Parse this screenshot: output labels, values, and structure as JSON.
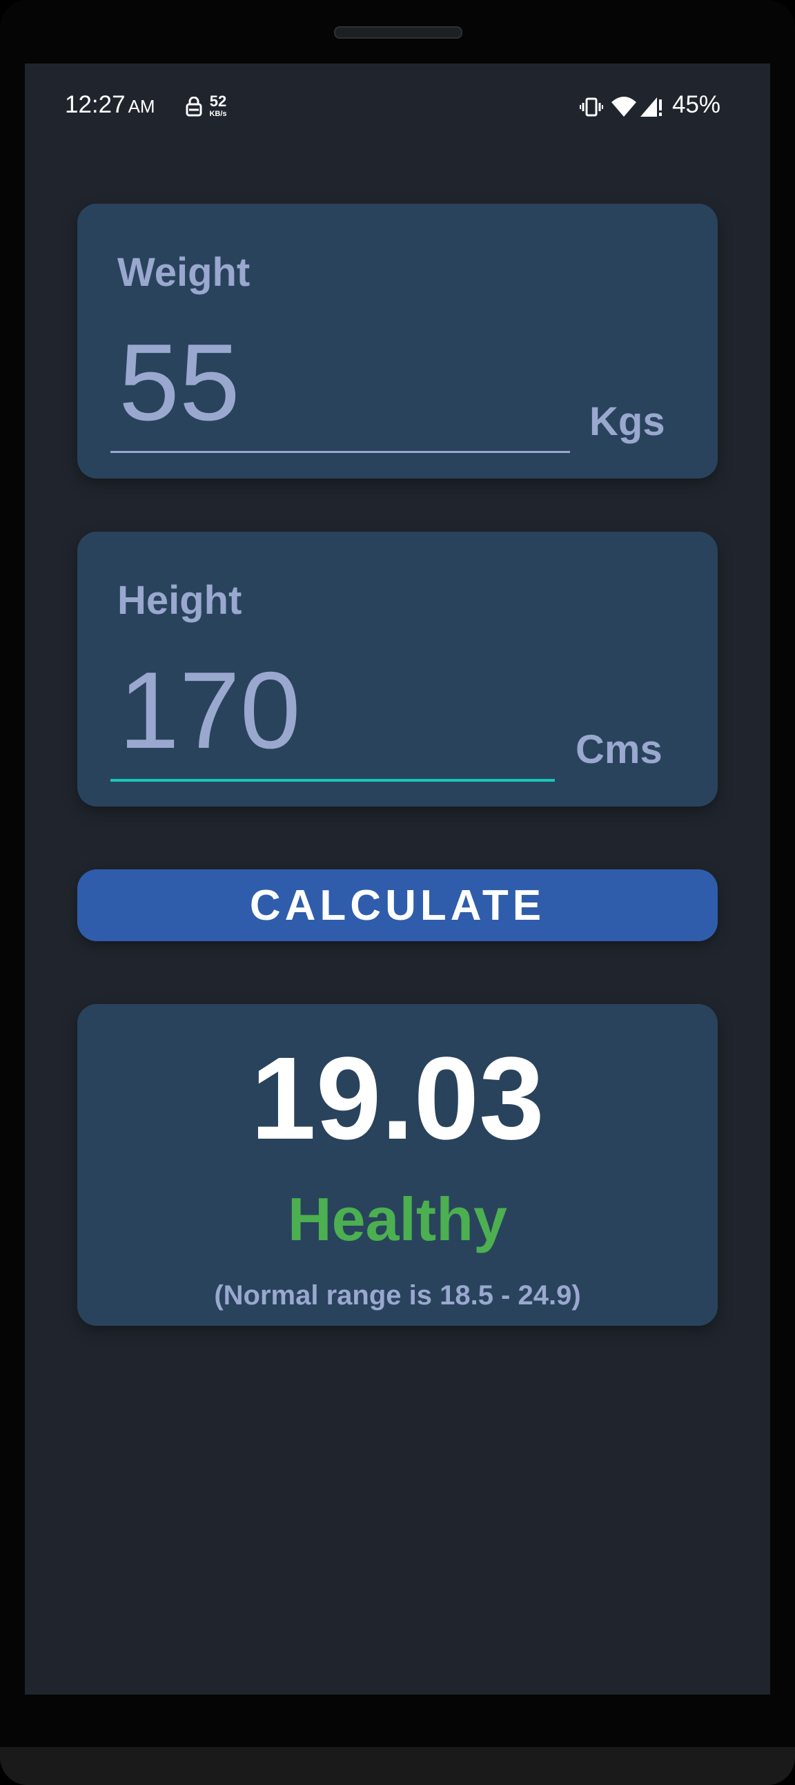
{
  "status_bar": {
    "time": "12:27",
    "ampm": "AM",
    "net_speed_value": "52",
    "net_speed_unit": "KB/s",
    "battery": "45%"
  },
  "weight": {
    "label": "Weight",
    "value": "55",
    "unit": "Kgs"
  },
  "height": {
    "label": "Height",
    "value": "170",
    "unit": "Cms"
  },
  "calculate_label": "CALCULATE",
  "result": {
    "bmi": "19.03",
    "status": "Healthy",
    "range_note": "(Normal range is 18.5 - 24.9)"
  },
  "colors": {
    "background": "#20252d",
    "card": "#29435d",
    "label": "#9aa8cf",
    "accent_underline": "#16c8b8",
    "button": "#2f5dac",
    "healthy": "#4caf50"
  },
  "icons": [
    "vpn-key-icon",
    "vibrate-icon",
    "wifi-icon",
    "signal-icon"
  ]
}
